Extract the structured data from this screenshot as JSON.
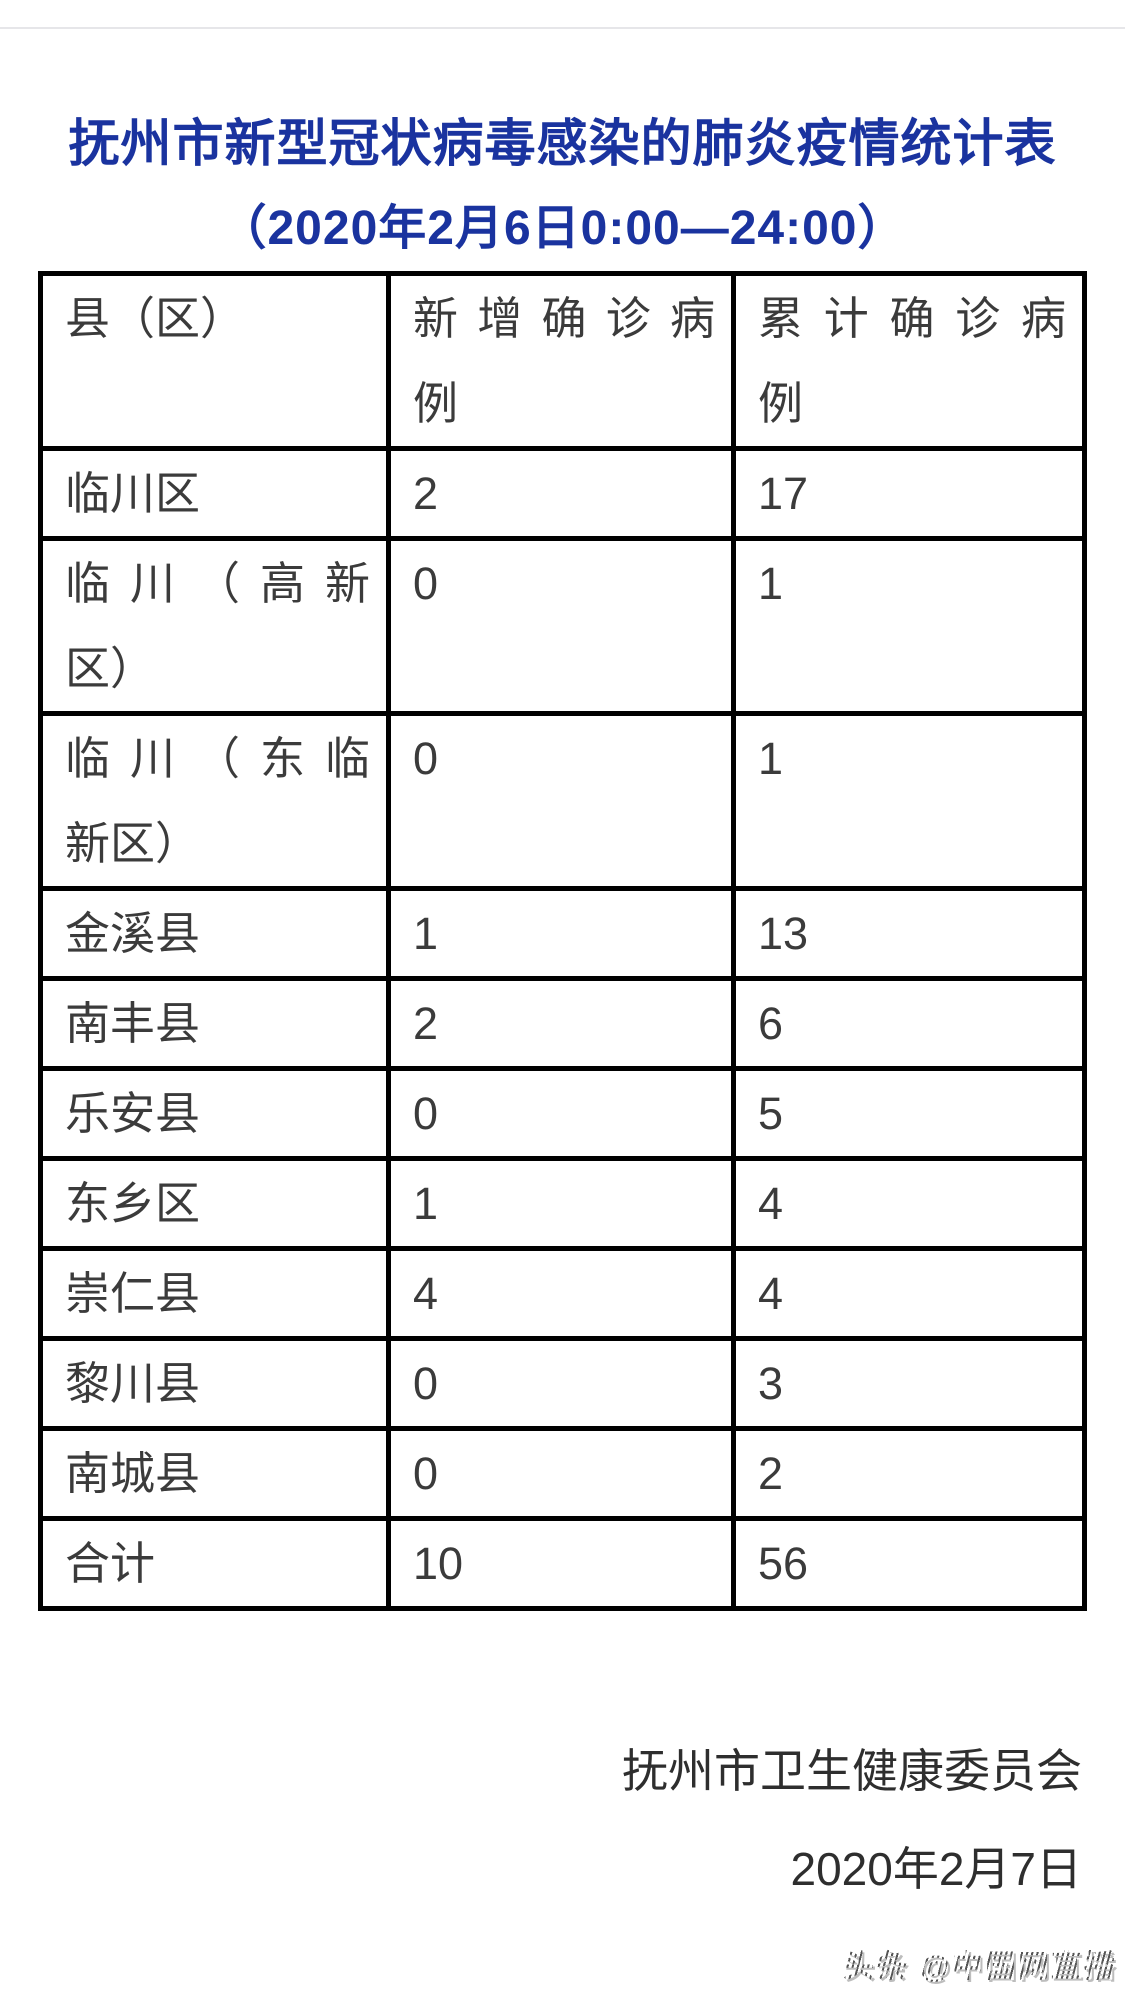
{
  "page": {
    "title": "抚州市新型冠状病毒感染的肺炎疫情统计表",
    "subtitle": "（2020年2月6日0:00—24:00）"
  },
  "table": {
    "headers": [
      {
        "text": "县（区）",
        "lines": [
          "县（区）"
        ]
      },
      {
        "text": "新增确诊病例",
        "lines": [
          "新增确诊病",
          "例"
        ]
      },
      {
        "text": "累计确诊病例",
        "lines": [
          "累计确诊病",
          "例"
        ]
      }
    ],
    "rows": [
      {
        "region_lines": [
          "临川区"
        ],
        "new_cases": "2",
        "total_cases": "17"
      },
      {
        "region_lines": [
          "临川（高新",
          "区）"
        ],
        "new_cases": "0",
        "total_cases": "1"
      },
      {
        "region_lines": [
          "临川（东临",
          "新区）"
        ],
        "new_cases": "0",
        "total_cases": "1"
      },
      {
        "region_lines": [
          "金溪县"
        ],
        "new_cases": "1",
        "total_cases": "13"
      },
      {
        "region_lines": [
          "南丰县"
        ],
        "new_cases": "2",
        "total_cases": "6"
      },
      {
        "region_lines": [
          "乐安县"
        ],
        "new_cases": "0",
        "total_cases": "5"
      },
      {
        "region_lines": [
          "东乡区"
        ],
        "new_cases": "1",
        "total_cases": "4"
      },
      {
        "region_lines": [
          "崇仁县"
        ],
        "new_cases": "4",
        "total_cases": "4"
      },
      {
        "region_lines": [
          "黎川县"
        ],
        "new_cases": "0",
        "total_cases": "3"
      },
      {
        "region_lines": [
          "南城县"
        ],
        "new_cases": "0",
        "total_cases": "2"
      },
      {
        "region_lines": [
          "合计"
        ],
        "new_cases": "10",
        "total_cases": "56"
      }
    ]
  },
  "footer": {
    "signature": "抚州市卫生健康委员会",
    "date": "2020年2月7日"
  },
  "watermark": "头条 @中国网直播",
  "colors": {
    "title_blue": "#1a339f",
    "table_border": "#000000",
    "cell_text": "#3b3b3b",
    "footer_text": "#2e2e2e",
    "watermark_gray": "#8e8e8e",
    "top_rule": "#e6e6e9"
  }
}
